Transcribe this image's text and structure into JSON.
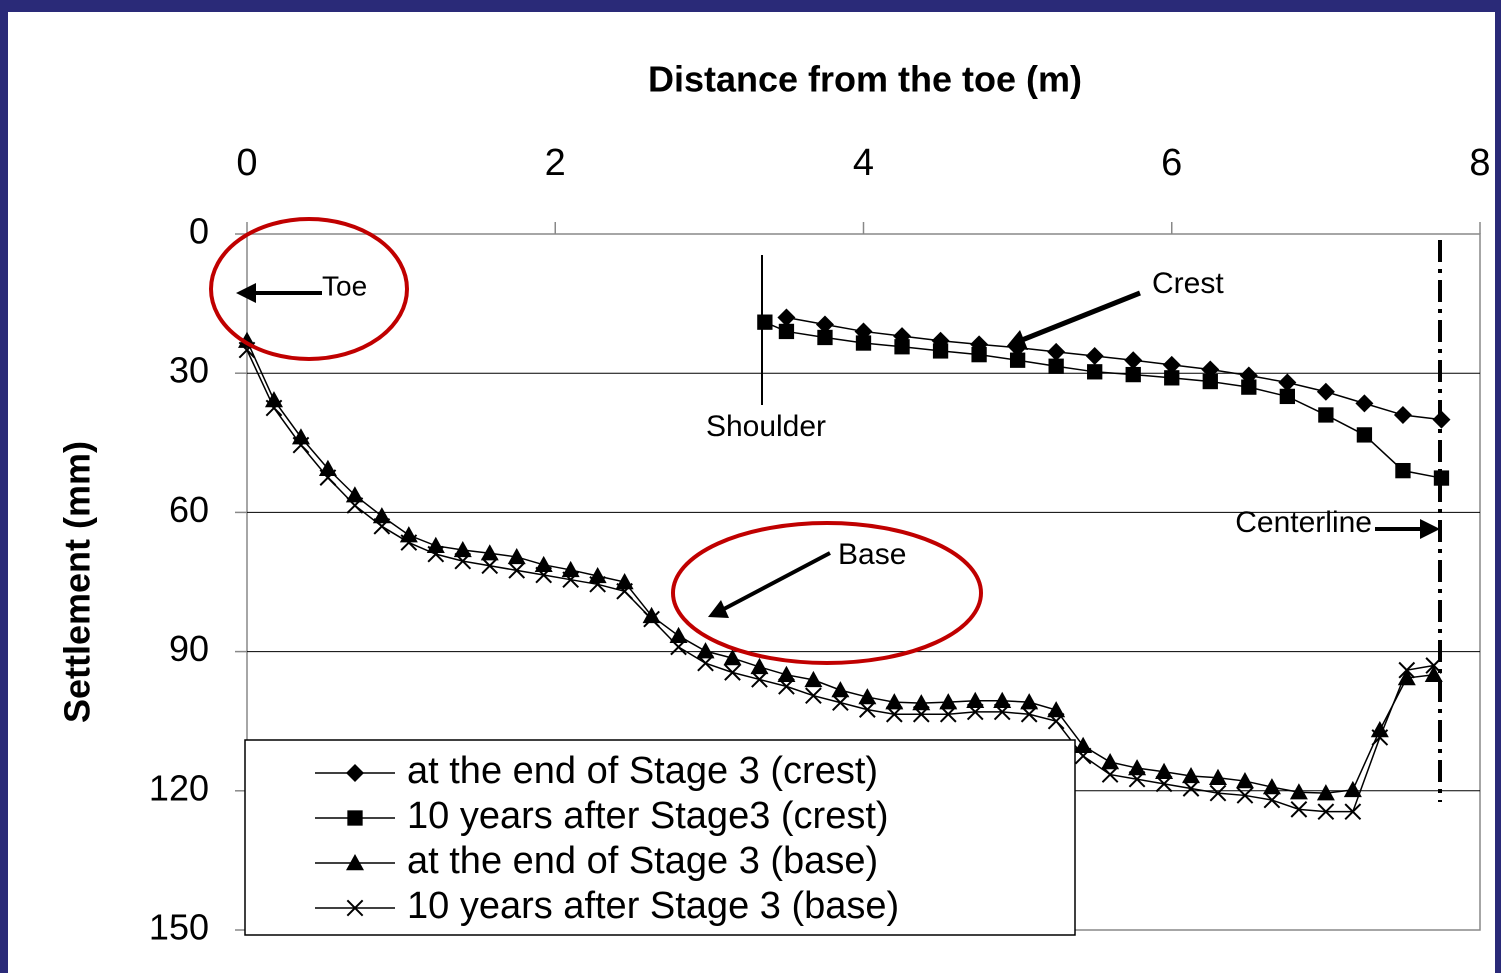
{
  "chart_data": {
    "type": "line",
    "x_label": "Distance from the toe (m)",
    "y_label": "Settlement (mm)",
    "xlim": [
      0,
      8
    ],
    "xticks": [
      0,
      2,
      4,
      6,
      8
    ],
    "ylim": [
      0,
      150
    ],
    "yticks": [
      0,
      30,
      60,
      90,
      120,
      150
    ],
    "y_inverted": true,
    "x_axis_position": "top",
    "grid": "y",
    "legend": "lower left",
    "annotations": [
      "Toe",
      "Crest",
      "Shoulder",
      "Base",
      "Centerline"
    ],
    "series": [
      {
        "name": "at the end of Stage 3 (crest)",
        "color": "#000000",
        "marker": "diamond",
        "x": [
          3.5,
          3.75,
          4,
          4.25,
          4.5,
          4.75,
          5,
          5.25,
          5.5,
          5.75,
          6,
          6.25,
          6.5,
          6.75,
          7,
          7.25,
          7.5,
          7.75
        ],
        "values": [
          18,
          19.5,
          21,
          22,
          23,
          23.8,
          24.5,
          25.4,
          26.3,
          27.2,
          28.2,
          29.2,
          30.5,
          32,
          34,
          36.5,
          39,
          40
        ]
      },
      {
        "name": "10 years after Stage3 (crest)",
        "color": "#000000",
        "marker": "square",
        "x": [
          3.36,
          3.5,
          3.75,
          4,
          4.25,
          4.5,
          4.75,
          5,
          5.25,
          5.5,
          5.75,
          6,
          6.25,
          6.5,
          6.75,
          7,
          7.25,
          7.5,
          7.75
        ],
        "values": [
          19,
          21,
          22.3,
          23.5,
          24.3,
          25.2,
          26,
          27.2,
          28.5,
          29.7,
          30.3,
          31,
          31.8,
          33,
          35,
          39,
          43.3,
          51,
          52.6
        ]
      },
      {
        "name": "at the end of Stage 3 (base)",
        "color": "#000000",
        "marker": "triangle",
        "x": [
          0,
          0.175,
          0.35,
          0.525,
          0.7,
          0.875,
          1.05,
          1.225,
          1.4,
          1.575,
          1.75,
          1.925,
          2.1,
          2.275,
          2.45,
          2.625,
          2.8,
          2.975,
          3.15,
          3.325,
          3.5,
          3.675,
          3.85,
          4.025,
          4.2,
          4.375,
          4.55,
          4.725,
          4.9,
          5.075,
          5.25,
          5.425,
          5.6,
          5.775,
          5.95,
          6.125,
          6.3,
          6.475,
          6.65,
          6.825,
          7,
          7.175,
          7.35,
          7.525,
          7.7
        ],
        "values": [
          23,
          35.8,
          43.8,
          50.6,
          56.3,
          60.8,
          64.9,
          67.2,
          68.1,
          68.8,
          69.6,
          71.3,
          72.4,
          73.7,
          75,
          82.3,
          86.6,
          89.9,
          91.4,
          93.3,
          95,
          96.1,
          98.3,
          99.8,
          100.9,
          101.1,
          100.9,
          100.6,
          100.6,
          100.9,
          102.6,
          110.3,
          113.8,
          115.1,
          115.9,
          116.8,
          117.2,
          117.9,
          119.2,
          120.3,
          120.5,
          119.8,
          106.9,
          95.7,
          95
        ]
      },
      {
        "name": "10 years after Stage 3 (base)",
        "color": "#000000",
        "marker": "x",
        "x": [
          0,
          0.175,
          0.35,
          0.525,
          0.7,
          0.875,
          1.05,
          1.225,
          1.4,
          1.575,
          1.75,
          1.925,
          2.1,
          2.275,
          2.45,
          2.625,
          2.8,
          2.975,
          3.15,
          3.325,
          3.5,
          3.675,
          3.85,
          4.025,
          4.2,
          4.375,
          4.55,
          4.725,
          4.9,
          5.075,
          5.25,
          5.425,
          5.6,
          5.775,
          5.95,
          6.125,
          6.3,
          6.475,
          6.65,
          6.825,
          7,
          7.175,
          7.35,
          7.525,
          7.7
        ],
        "values": [
          25,
          37.5,
          45.5,
          52.5,
          58.5,
          63,
          66.5,
          69,
          70.5,
          71.5,
          72.5,
          73.5,
          74.5,
          75.5,
          77,
          83,
          89,
          92.5,
          94.5,
          96,
          97.5,
          99.5,
          101,
          102.5,
          103.5,
          103.5,
          103.5,
          103,
          103,
          103.5,
          105,
          112.5,
          116.5,
          117.5,
          118.5,
          119.5,
          120.5,
          121,
          122,
          124,
          124.5,
          124.5,
          108.5,
          94,
          93
        ]
      }
    ]
  }
}
